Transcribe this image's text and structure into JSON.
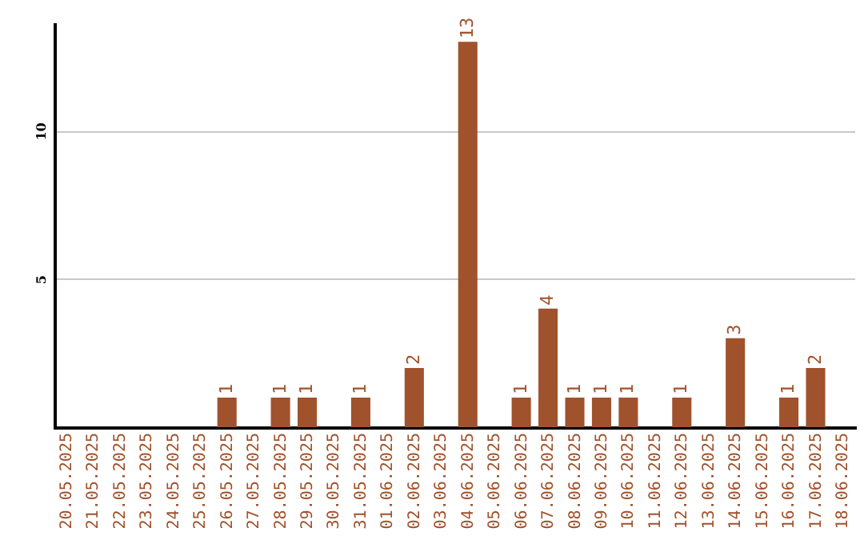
{
  "chart_data": {
    "type": "bar",
    "categories": [
      "20.05.2025",
      "21.05.2025",
      "22.05.2025",
      "23.05.2025",
      "24.05.2025",
      "25.05.2025",
      "26.05.2025",
      "27.05.2025",
      "28.05.2025",
      "29.05.2025",
      "30.05.2025",
      "31.05.2025",
      "01.06.2025",
      "02.06.2025",
      "03.06.2025",
      "04.06.2025",
      "05.06.2025",
      "06.06.2025",
      "07.06.2025",
      "08.06.2025",
      "09.06.2025",
      "10.06.2025",
      "11.06.2025",
      "12.06.2025",
      "13.06.2025",
      "14.06.2025",
      "15.06.2025",
      "16.06.2025",
      "17.06.2025",
      "18.06.2025"
    ],
    "values": [
      0,
      0,
      0,
      0,
      0,
      0,
      1,
      0,
      1,
      1,
      0,
      1,
      0,
      2,
      0,
      13,
      0,
      1,
      4,
      1,
      1,
      1,
      0,
      1,
      0,
      3,
      0,
      1,
      2,
      0
    ],
    "value_labels": [
      null,
      null,
      null,
      null,
      null,
      null,
      "1",
      null,
      "1",
      "1",
      null,
      "1",
      null,
      "2",
      null,
      "13",
      null,
      "1",
      "4",
      "1",
      "1",
      "1",
      null,
      "1",
      null,
      "3",
      null,
      "1",
      "2",
      null
    ],
    "color": "#a0522d",
    "ylim": [
      0,
      13.6
    ],
    "yticks": [
      5,
      10
    ],
    "grid": "y"
  }
}
